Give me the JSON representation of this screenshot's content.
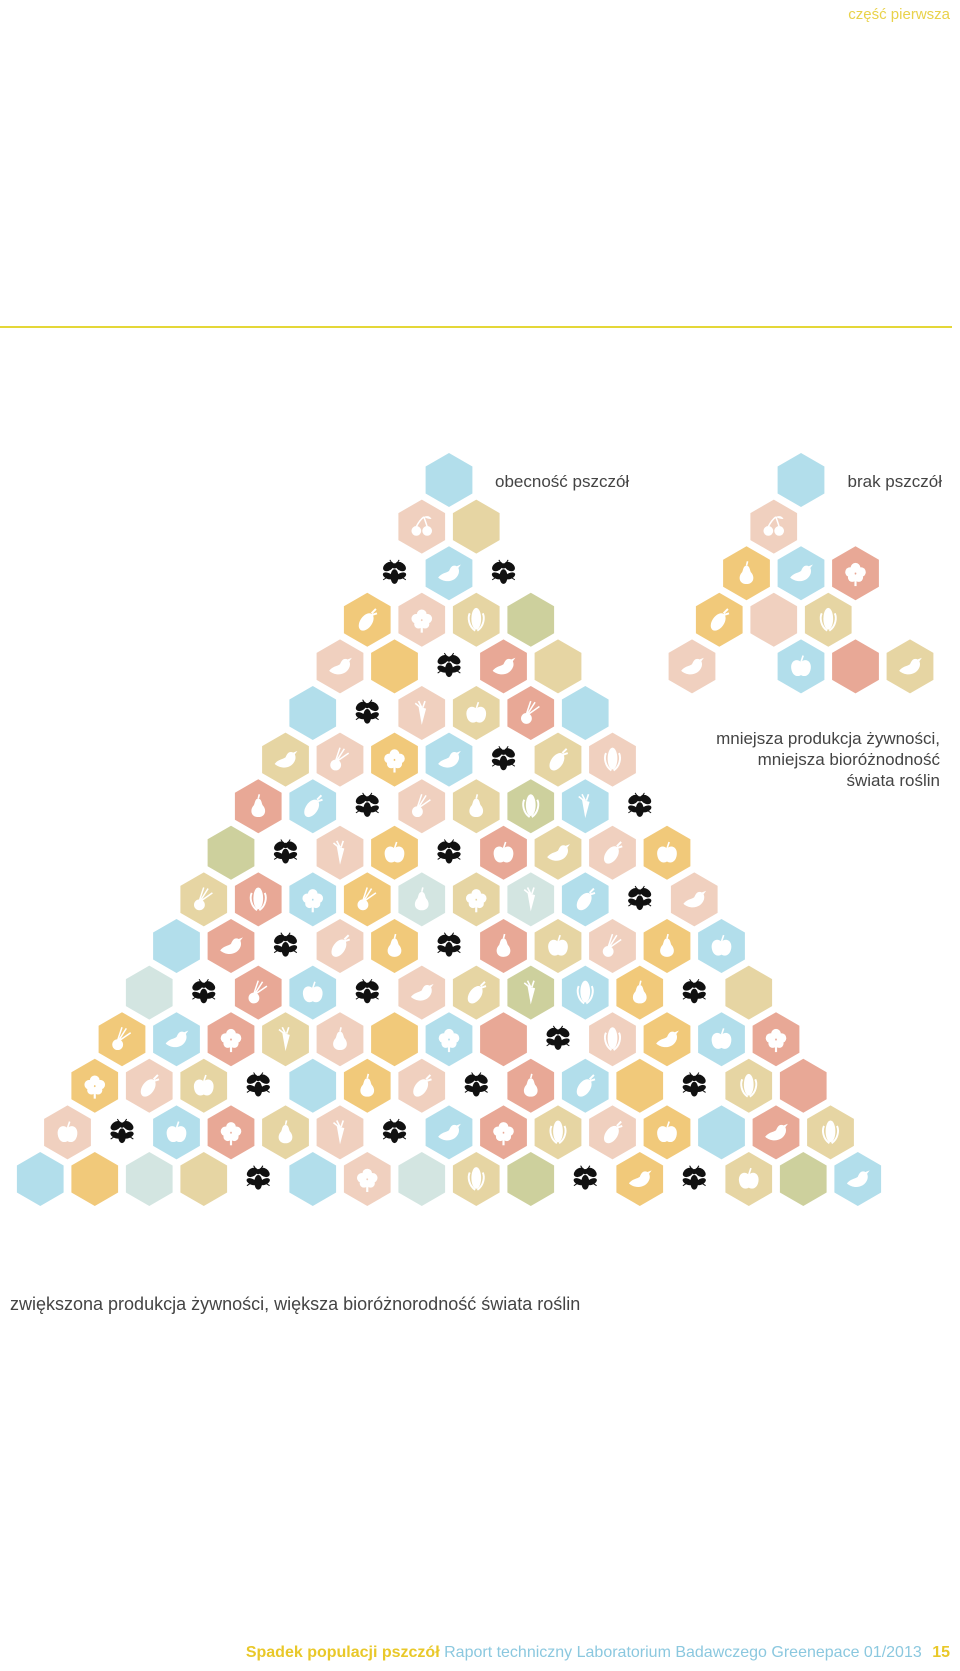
{
  "header": {
    "section_label": "część pierwsza"
  },
  "legend": {
    "bees_present": "obecność pszczół",
    "bees_absent": "brak pszczół"
  },
  "captions": {
    "less_lines": [
      "mniejsza produkcja żywności,",
      "mniejsza bioróżnodność",
      "świata roślin"
    ],
    "more": "zwiększona produkcja żywności, większa bioróżnorodność świata roślin"
  },
  "footer": {
    "title": "Spadek populacji pszczół",
    "text": "Raport techniczny Laboratorium Badawczego Greenepace 01/2013",
    "page": "15"
  },
  "colors": {
    "blue": "#b2deeb",
    "peach": "#f0d0bf",
    "tan": "#e6d5a3",
    "yellow": "#f1c97a",
    "salmon": "#e8a896",
    "sage": "#cdd09d",
    "mint": "#d3e5e1",
    "accent": "#e9c829"
  },
  "hex_grid": {
    "left_pyramid": [
      [
        "blue"
      ],
      [
        "peach:cherry-icon",
        "tan"
      ],
      [
        "bee",
        "blue:bird-icon",
        "bee"
      ],
      [
        "yellow:eggplant-icon",
        "peach:flower-icon",
        "tan:corn-icon",
        "sage"
      ],
      [
        "peach:bird-icon",
        "yellow",
        "bee",
        "salmon:bird-icon",
        "tan"
      ],
      [
        "blue",
        "bee",
        "peach:carrot-icon",
        "tan:apple-icon",
        "salmon:turnip-icon",
        "blue"
      ],
      [
        "tan:bird-icon",
        "peach:turnip-icon",
        "yellow:flower-icon",
        "blue:bird-icon",
        "bee",
        "tan:eggplant-icon",
        "peach:corn-icon"
      ],
      [
        "salmon:pear-icon",
        "blue:eggplant-icon",
        "bee",
        "peach:turnip-icon",
        "tan:pear-icon",
        "sage:corn-icon",
        "blue:carrot-icon",
        "bee"
      ],
      [
        "sage",
        "bee",
        "peach:carrot-icon",
        "yellow:apple-icon",
        "bee",
        "salmon:apple-icon",
        "tan:bird-icon",
        "peach:eggplant-icon",
        "yellow:apple-icon"
      ],
      [
        "tan:turnip-icon",
        "salmon:corn-icon",
        "blue:flower-icon",
        "yellow:turnip-icon",
        "mint:pear-icon",
        "tan:flower-icon",
        "mint:carrot-icon",
        "blue:eggplant-icon",
        "bee",
        "peach:bird-icon"
      ],
      [
        "blue",
        "salmon:bird-icon",
        "bee",
        "peach:eggplant-icon",
        "yellow:pear-icon",
        "bee",
        "salmon:pear-icon",
        "tan:apple-icon",
        "peach:turnip-icon",
        "yellow:pear-icon",
        "blue:apple-icon"
      ],
      [
        "mint",
        "bee",
        "salmon:turnip-icon",
        "blue:apple-icon",
        "bee",
        "peach:bird-icon",
        "tan:eggplant-icon",
        "sage:carrot-icon",
        "blue:corn-icon",
        "yellow:pear-icon",
        "bee",
        "tan"
      ],
      [
        "yellow:turnip-icon",
        "blue:bird-icon",
        "salmon:flower-icon",
        "tan:carrot-icon",
        "peach:pear-icon",
        "yellow",
        "blue:flower-icon",
        "salmon",
        "bee",
        "peach:corn-icon",
        "yellow:bird-icon",
        "blue:apple-icon",
        "salmon:flower-icon"
      ],
      [
        "yellow:flower-icon",
        "peach:eggplant-icon",
        "tan:apple-icon",
        "bee",
        "blue",
        "yellow:pear-icon",
        "peach:eggplant-icon",
        "bee",
        "salmon:pear-icon",
        "blue:eggplant-icon",
        "yellow",
        "bee",
        "tan:corn-icon",
        "salmon"
      ],
      [
        "peach:apple-icon",
        "bee",
        "blue:apple-icon",
        "salmon:flower-icon",
        "tan:pear-icon",
        "peach:carrot-icon",
        "bee",
        "blue:bird-icon",
        "salmon:flower-icon",
        "tan:corn-icon",
        "peach:eggplant-icon",
        "yellow:apple-icon",
        "blue",
        "salmon:bird-icon",
        "tan:corn-icon"
      ],
      [
        "blue",
        "yellow",
        "mint",
        "tan",
        "bee",
        "blue",
        "peach:flower-icon",
        "mint",
        "tan:corn-icon",
        "sage",
        "bee",
        "yellow:bird-icon",
        "bee",
        "tan:apple-icon",
        "sage",
        "blue:bird-icon"
      ]
    ],
    "right_pyramid": [
      [
        "blue"
      ],
      [
        "peach:cherry-icon",
        ""
      ],
      [
        "yellow:pear-icon",
        "blue:bird-icon",
        "salmon:flower-icon"
      ],
      [
        "yellow:eggplant-icon",
        "peach",
        "tan:corn-icon",
        ""
      ],
      [
        "peach:bird-icon",
        "",
        "blue:apple-icon",
        "salmon",
        "tan:bird-icon"
      ]
    ]
  }
}
